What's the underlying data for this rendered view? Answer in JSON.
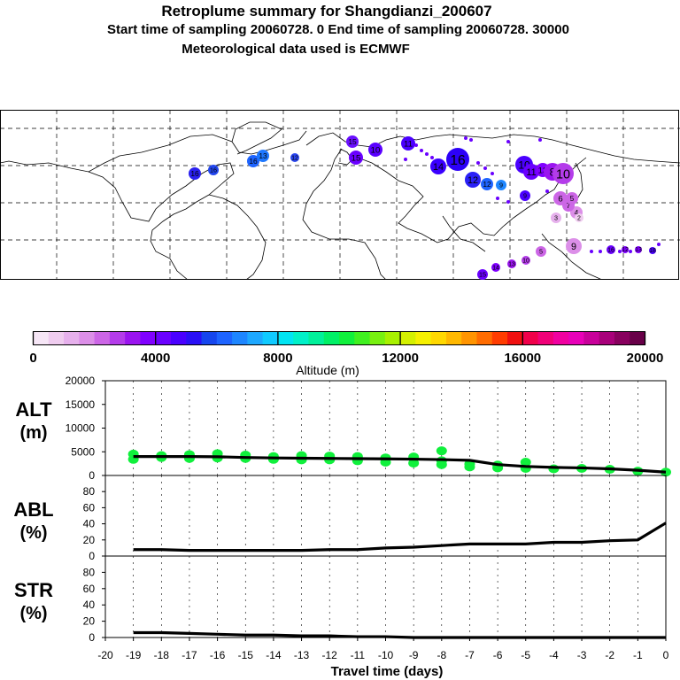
{
  "header": {
    "title": "Retroplume summary for Shangdianzi_200607",
    "line2": "Start time of sampling 20060728.     0     End time of sampling 20060728. 30000",
    "line3": "Meteorological data used is ECMWF"
  },
  "colorbar": {
    "tick_labels": [
      "0",
      "4000",
      "8000",
      "12000",
      "16000",
      "20000"
    ],
    "label": "Altitude  (m)",
    "colors": [
      "#f6e6f6",
      "#efccef",
      "#e6b0ec",
      "#dc8fe8",
      "#cc66e6",
      "#b43cea",
      "#9a14ef",
      "#8000ff",
      "#6a00ff",
      "#4a00ff",
      "#2a10f6",
      "#1646ee",
      "#1e64ff",
      "#1e86ff",
      "#1ea8ff",
      "#10caff",
      "#00e4f2",
      "#00f0c8",
      "#00f09a",
      "#00f066",
      "#10f03c",
      "#40f020",
      "#78f010",
      "#a8f000",
      "#d4f000",
      "#f6f000",
      "#ffd800",
      "#ffb800",
      "#ff9400",
      "#ff6c00",
      "#ff3c00",
      "#f01010",
      "#f0004a",
      "#f00078",
      "#f000a0",
      "#e800b8",
      "#c8009a",
      "#a8007a",
      "#88005e",
      "#680048"
    ]
  },
  "map_labels": {
    "points": [
      "16",
      "16",
      "16",
      "13",
      "12",
      "15",
      "15",
      "10",
      "11",
      "14",
      "16",
      "12",
      "12",
      "9",
      "10",
      "11",
      "13",
      "9",
      "8",
      "10",
      "4",
      "7",
      "6",
      "3",
      "5",
      "2",
      "9",
      "5",
      "10",
      "13",
      "14",
      "15",
      "16",
      "18",
      "12",
      "13"
    ]
  },
  "chart_data": [
    {
      "type": "line",
      "panel": "ALT",
      "ylabel": [
        "ALT",
        "(m)"
      ],
      "yticks": [
        0,
        5000,
        10000,
        15000,
        20000
      ],
      "ylim": [
        0,
        20000
      ],
      "x": [
        -19,
        -18,
        -17,
        -16,
        -15,
        -14,
        -13,
        -12,
        -11,
        -10,
        -9,
        -8,
        -7,
        -6,
        -5,
        -4,
        -3,
        -2,
        -1,
        0
      ],
      "values": [
        4000,
        4000,
        4000,
        3950,
        3800,
        3700,
        3650,
        3600,
        3550,
        3500,
        3450,
        3350,
        3200,
        2300,
        1900,
        1700,
        1600,
        1400,
        1100,
        700
      ],
      "scatter": {
        "x": [
          -19,
          -19,
          -18,
          -18,
          -17,
          -17,
          -16,
          -16,
          -15,
          -15,
          -14,
          -14,
          -13,
          -13,
          -12,
          -12,
          -11,
          -11,
          -10,
          -10,
          -9,
          -9,
          -8,
          -8,
          -8,
          -7,
          -7,
          -6,
          -6,
          -5,
          -5,
          -4,
          -3,
          -2,
          -1,
          0
        ],
        "y": [
          4500,
          3400,
          4200,
          3800,
          4400,
          3600,
          4600,
          3700,
          4300,
          3600,
          4000,
          3400,
          4200,
          3300,
          4100,
          3300,
          4000,
          3100,
          3700,
          2800,
          3900,
          2600,
          3100,
          2300,
          5200,
          2400,
          1800,
          2200,
          1600,
          2800,
          1500,
          1400,
          1500,
          1300,
          900,
          700
        ]
      }
    },
    {
      "type": "line",
      "panel": "ABL",
      "ylabel": [
        "ABL",
        "(%)"
      ],
      "yticks": [
        0,
        20,
        40,
        60,
        80
      ],
      "ylim": [
        0,
        100
      ],
      "x": [
        -19,
        -18,
        -17,
        -16,
        -15,
        -14,
        -13,
        -12,
        -11,
        -10,
        -9,
        -8,
        -7,
        -6,
        -5,
        -4,
        -3,
        -2,
        -1,
        0
      ],
      "values": [
        8,
        8,
        7,
        7,
        7,
        7,
        7,
        8,
        8,
        10,
        11,
        13,
        15,
        15,
        15,
        17,
        17,
        19,
        20,
        41
      ]
    },
    {
      "type": "line",
      "panel": "STR",
      "ylabel": [
        "STR",
        "(%)"
      ],
      "yticks": [
        0,
        20,
        40,
        60,
        80
      ],
      "ylim": [
        0,
        100
      ],
      "x": [
        -19,
        -18,
        -17,
        -16,
        -15,
        -14,
        -13,
        -12,
        -11,
        -10,
        -9,
        -8,
        -7,
        -6,
        -5,
        -4,
        -3,
        -2,
        -1,
        0
      ],
      "values": [
        6,
        6,
        5,
        4,
        3,
        3,
        2,
        2,
        1,
        1,
        0,
        0,
        0,
        0,
        0,
        0,
        0,
        0,
        0,
        0
      ]
    }
  ],
  "xaxis": {
    "label": "Travel time (days)",
    "tick_labels": [
      "-20",
      "-19",
      "-18",
      "-17",
      "-16",
      "-15",
      "-14",
      "-13",
      "-12",
      "-11",
      "-10",
      "-9",
      "-8",
      "-7",
      "-6",
      "-5",
      "-4",
      "-3",
      "-2",
      "-1",
      "0"
    ]
  }
}
